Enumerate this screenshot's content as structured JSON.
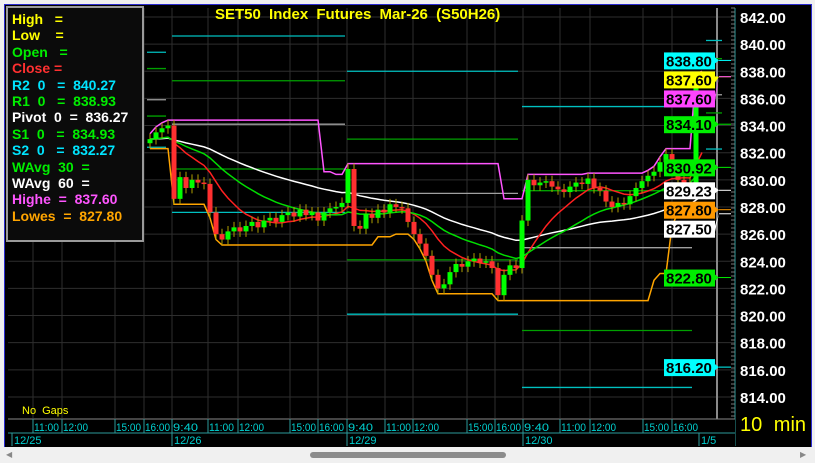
{
  "chart_data": {
    "type": "candlestick",
    "title": "SET50 Index Futures Mar-26 (S50H26)",
    "timeframe": "10 min",
    "gap_mode": "No Gaps",
    "ylim": [
      813,
      843
    ],
    "y_ticks": [
      "842.00",
      "840.00",
      "838.00",
      "836.00",
      "834.00",
      "832.00",
      "830.00",
      "828.00",
      "826.00",
      "824.00",
      "822.00",
      "820.00",
      "818.00",
      "816.00",
      "814.00"
    ],
    "time_ticks": [
      "11:00",
      "12:00",
      "15:00",
      "16:00",
      "9:40",
      "11:00",
      "12:00",
      "15:00",
      "16:00",
      "9:40",
      "11:00",
      "12:00",
      "15:00",
      "16:00",
      "9:40",
      "11:00",
      "12:00",
      "15:00",
      "16:00"
    ],
    "date_ticks": [
      "12/25",
      "12/26",
      "12/29",
      "12/30",
      "1/5"
    ],
    "close": [
      833.0,
      833.5,
      833.8,
      834.0,
      828.6,
      830.2,
      829.4,
      830.0,
      829.8,
      829.7,
      827.6,
      826.0,
      825.6,
      826.2,
      826.5,
      826.2,
      826.6,
      826.9,
      826.5,
      827.0,
      827.2,
      826.9,
      827.4,
      827.6,
      827.3,
      827.8,
      827.4,
      827.6,
      827.0,
      827.6,
      827.9,
      828.0,
      828.3,
      830.8,
      826.6,
      826.4,
      827.5,
      827.2,
      827.8,
      827.6,
      828.2,
      828.0,
      827.9,
      826.9,
      826.0,
      825.3,
      824.4,
      823.0,
      822.0,
      822.3,
      823.2,
      823.8,
      823.6,
      824.0,
      824.2,
      823.9,
      824.0,
      823.5,
      821.5,
      823.0,
      823.7,
      823.5,
      827.0,
      830.0,
      829.6,
      829.8,
      829.9,
      829.5,
      829.3,
      829.1,
      829.5,
      829.8,
      829.7,
      830.1,
      829.4,
      829.2,
      828.4,
      828.0,
      828.3,
      828.2,
      828.8,
      829.4,
      829.9,
      830.3,
      830.6,
      831.3,
      831.9,
      831.0,
      830.0,
      829.8,
      829.6,
      837.4,
      837.6
    ],
    "pivots": [
      {
        "date": "12/25",
        "R2": 839.4,
        "R1": 838.2,
        "Pivot": 835.9,
        "S1": 834.7,
        "S2": 832.4
      },
      {
        "date": "12/26",
        "R2": 840.6,
        "R1": 837.3,
        "Pivot": 834.1,
        "S1": 830.8,
        "S2": 827.6
      },
      {
        "date": "12/29",
        "R2": 838.0,
        "R1": 833.0,
        "Pivot": 829.0,
        "S1": 824.1,
        "S2": 820.1
      },
      {
        "date": "12/30",
        "R2": 835.4,
        "R1": 829.2,
        "Pivot": 825.0,
        "S1": 818.9,
        "S2": 814.7
      },
      {
        "date": "1/5",
        "R2": 840.27,
        "R1": 838.93,
        "Pivot": 836.27,
        "S1": 834.93,
        "S2": 832.27
      }
    ],
    "price_badges": [
      {
        "value": "838.80",
        "color": "#00ffff"
      },
      {
        "value": "837.60",
        "color": "#ffff00"
      },
      {
        "value": "837.60",
        "color": "#ff44ff"
      },
      {
        "value": "834.10",
        "color": "#00ee00"
      },
      {
        "value": "830.92",
        "color": "#00ee00"
      },
      {
        "value": "829.23",
        "color": "#ffffff"
      },
      {
        "value": "827.80",
        "color": "#ff9900"
      },
      {
        "value": "827.50",
        "color": "#ffffff"
      },
      {
        "value": "822.80",
        "color": "#00ee00"
      },
      {
        "value": "816.20",
        "color": "#00ffff"
      }
    ],
    "colors": {
      "up": "#00ff00",
      "down": "#ff3030",
      "wick": "#b0a000",
      "highest": "#ff55ff",
      "lowest": "#ffa500",
      "wavg30": "#00dd00",
      "wavg60": "#ffffff",
      "red_line": "#ff2020",
      "r2s2": "#00c0c0",
      "r1s1": "#00a000",
      "pivot": "#a0a0a0",
      "grid": "#2e2e2e"
    }
  },
  "legend": [
    {
      "text": "High   =",
      "color": "#ffff00"
    },
    {
      "text": "Low    =",
      "color": "#ffff00"
    },
    {
      "text": "Open   =",
      "color": "#00ee00"
    },
    {
      "text": "Close =",
      "color": "#ff3030"
    },
    {
      "text": "R2  0   =  840.27",
      "color": "#00e5ff"
    },
    {
      "text": "R1  0   =  838.93",
      "color": "#00ee00"
    },
    {
      "text": "Pivot  0  =  836.27",
      "color": "#ffffff"
    },
    {
      "text": "S1  0   =  834.93",
      "color": "#00ee00"
    },
    {
      "text": "S2  0   =  832.27",
      "color": "#00e5ff"
    },
    {
      "text": "WAvg  30  =",
      "color": "#00ee00"
    },
    {
      "text": "WAvg  60  =",
      "color": "#ffffff"
    },
    {
      "text": "Highe  =  837.60",
      "color": "#ff55ff"
    },
    {
      "text": "Lowes  =  827.80",
      "color": "#ffa500"
    }
  ]
}
